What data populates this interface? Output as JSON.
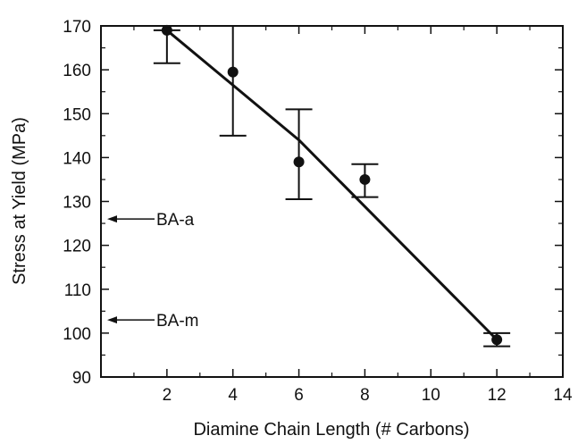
{
  "chart_data": {
    "type": "scatter",
    "title": "",
    "xlabel": "Diamine Chain Length (# Carbons)",
    "ylabel": "Stress at Yield (MPa)",
    "xlim": [
      0,
      14
    ],
    "ylim": [
      90,
      170
    ],
    "xticks": [
      2,
      4,
      6,
      8,
      10,
      12,
      14
    ],
    "yticks": [
      90,
      100,
      110,
      120,
      130,
      140,
      150,
      160,
      170
    ],
    "grid": false,
    "legend": "none",
    "colors": {
      "ink": "#111111",
      "background": "#ffffff"
    },
    "series": [
      {
        "points": [
          {
            "x": 2,
            "y": 169,
            "err_low": 161.5,
            "err_high": 169
          },
          {
            "x": 4,
            "y": 159.5,
            "err_low": 145,
            "err_high": 170
          },
          {
            "x": 6,
            "y": 139,
            "err_low": 130.5,
            "err_high": 151
          },
          {
            "x": 8,
            "y": 135,
            "err_low": 131,
            "err_high": 138.5
          },
          {
            "x": 12,
            "y": 98.5,
            "err_low": 97,
            "err_high": 100
          }
        ]
      }
    ],
    "fit_line": {
      "x": [
        2,
        6,
        12
      ],
      "y": [
        169,
        144,
        98.5
      ]
    },
    "annotations": [
      {
        "text": "BA-a",
        "y": 126,
        "arrow": "left"
      },
      {
        "text": "BA-m",
        "y": 103,
        "arrow": "left"
      }
    ]
  }
}
